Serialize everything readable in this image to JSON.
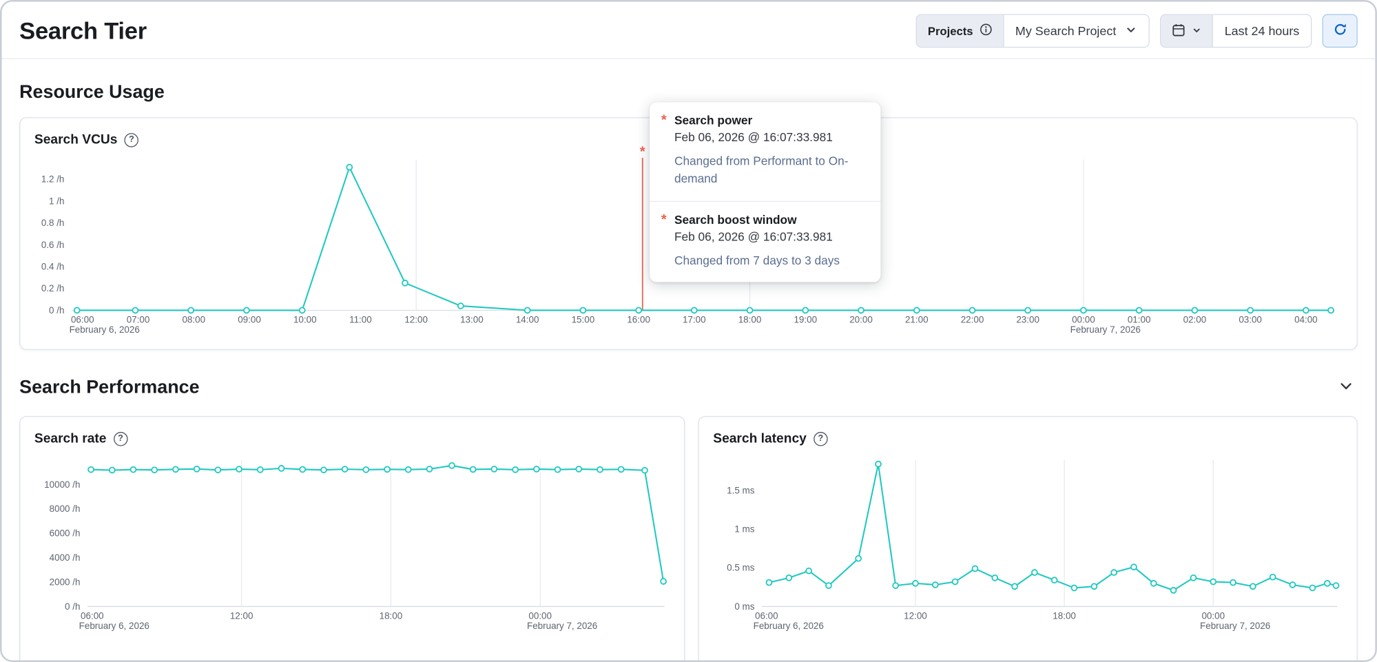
{
  "header": {
    "title": "Search Tier",
    "project_selector": {
      "label": "Projects",
      "value": "My Search Project"
    },
    "time_picker": {
      "value": "Last 24 hours"
    }
  },
  "icons": {
    "help": "?"
  },
  "sections": {
    "resource_usage": "Resource Usage",
    "search_performance": "Search Performance"
  },
  "tooltip": {
    "items": [
      {
        "marker": "*",
        "title": "Search power",
        "timestamp": "Feb 06, 2026 @ 16:07:33.981",
        "description": "Changed from Performant to On-demand"
      },
      {
        "marker": "*",
        "title": "Search boost window",
        "timestamp": "Feb 06, 2026 @ 16:07:33.981",
        "description": "Changed from 7 days to 3 days"
      }
    ]
  },
  "chart_data": [
    {
      "id": "search-vcus",
      "type": "line",
      "title": "Search VCUs",
      "unit": "/h",
      "color": "#1ec8c0",
      "legend": "none",
      "grid": "vertical",
      "x_domain": [
        5.8,
        28.5
      ],
      "y_max": 1.38,
      "grid_hours": [
        12,
        18,
        24
      ],
      "y_ticks": [
        {
          "v": 0,
          "label": "0 /h"
        },
        {
          "v": 0.2,
          "label": "0.2 /h"
        },
        {
          "v": 0.4,
          "label": "0.4 /h"
        },
        {
          "v": 0.6,
          "label": "0.6 /h"
        },
        {
          "v": 0.8,
          "label": "0.8 /h"
        },
        {
          "v": 1,
          "label": "1 /h"
        },
        {
          "v": 1.2,
          "label": "1.2 /h"
        }
      ],
      "x_ticks": [
        {
          "hour": 6,
          "label": "06:00",
          "sub": "February 6, 2026"
        },
        {
          "hour": 7,
          "label": "07:00"
        },
        {
          "hour": 8,
          "label": "08:00"
        },
        {
          "hour": 9,
          "label": "09:00"
        },
        {
          "hour": 10,
          "label": "10:00"
        },
        {
          "hour": 11,
          "label": "11:00"
        },
        {
          "hour": 12,
          "label": "12:00"
        },
        {
          "hour": 13,
          "label": "13:00"
        },
        {
          "hour": 14,
          "label": "14:00"
        },
        {
          "hour": 15,
          "label": "15:00"
        },
        {
          "hour": 16,
          "label": "16:00"
        },
        {
          "hour": 17,
          "label": "17:00"
        },
        {
          "hour": 18,
          "label": "18:00"
        },
        {
          "hour": 19,
          "label": "19:00"
        },
        {
          "hour": 20,
          "label": "20:00"
        },
        {
          "hour": 21,
          "label": "21:00"
        },
        {
          "hour": 22,
          "label": "22:00"
        },
        {
          "hour": 23,
          "label": "23:00"
        },
        {
          "hour": 24,
          "label": "00:00",
          "sub": "February 7, 2026"
        },
        {
          "hour": 25,
          "label": "01:00"
        },
        {
          "hour": 26,
          "label": "02:00"
        },
        {
          "hour": 27,
          "label": "03:00"
        },
        {
          "hour": 28,
          "label": "04:00"
        }
      ],
      "points": [
        [
          5.9,
          0
        ],
        [
          6.95,
          0
        ],
        [
          7.95,
          0
        ],
        [
          8.95,
          0
        ],
        [
          9.95,
          0
        ],
        [
          10.8,
          1.31
        ],
        [
          11.8,
          0.25
        ],
        [
          12.8,
          0.04
        ],
        [
          14,
          0
        ],
        [
          15,
          0
        ],
        [
          16,
          0
        ],
        [
          17,
          0
        ],
        [
          18,
          0
        ],
        [
          19,
          0
        ],
        [
          20,
          0
        ],
        [
          21,
          0
        ],
        [
          22,
          0
        ],
        [
          23,
          0
        ],
        [
          24,
          0
        ],
        [
          25,
          0
        ],
        [
          26,
          0
        ],
        [
          27,
          0
        ],
        [
          28,
          0
        ],
        [
          28.45,
          0
        ]
      ],
      "annotation": {
        "hour": 16.07,
        "symbol": "*",
        "color": "#e7664c"
      }
    },
    {
      "id": "search-rate",
      "type": "line",
      "title": "Search rate",
      "unit": "/h",
      "color": "#1ec8c0",
      "legend": "none",
      "grid": "vertical",
      "x_domain": [
        5.8,
        29
      ],
      "y_max": 12000,
      "grid_hours": [
        12,
        18,
        24
      ],
      "y_ticks": [
        {
          "v": 0,
          "label": "0 /h"
        },
        {
          "v": 2000,
          "label": "2000 /h"
        },
        {
          "v": 4000,
          "label": "4000 /h"
        },
        {
          "v": 6000,
          "label": "6000 /h"
        },
        {
          "v": 8000,
          "label": "8000 /h"
        },
        {
          "v": 10000,
          "label": "10000 /h"
        }
      ],
      "x_ticks": [
        {
          "hour": 6,
          "label": "06:00",
          "sub": "February 6, 2026"
        },
        {
          "hour": 12,
          "label": "12:00"
        },
        {
          "hour": 18,
          "label": "18:00"
        },
        {
          "hour": 24,
          "label": "00:00",
          "sub": "February 7, 2026"
        }
      ],
      "points": [
        [
          5.95,
          11230
        ],
        [
          6.8,
          11180
        ],
        [
          7.65,
          11230
        ],
        [
          8.5,
          11200
        ],
        [
          9.35,
          11250
        ],
        [
          10.2,
          11280
        ],
        [
          11.05,
          11200
        ],
        [
          11.9,
          11260
        ],
        [
          12.75,
          11220
        ],
        [
          13.6,
          11330
        ],
        [
          14.45,
          11240
        ],
        [
          15.3,
          11200
        ],
        [
          16.15,
          11260
        ],
        [
          17.0,
          11220
        ],
        [
          17.85,
          11250
        ],
        [
          18.7,
          11230
        ],
        [
          19.55,
          11270
        ],
        [
          20.45,
          11560
        ],
        [
          21.3,
          11240
        ],
        [
          22.15,
          11270
        ],
        [
          23.0,
          11220
        ],
        [
          23.85,
          11270
        ],
        [
          24.7,
          11230
        ],
        [
          25.55,
          11270
        ],
        [
          26.4,
          11230
        ],
        [
          27.25,
          11250
        ],
        [
          28.2,
          11170
        ],
        [
          28.95,
          2060
        ]
      ]
    },
    {
      "id": "search-latency",
      "type": "line",
      "title": "Search latency",
      "unit": "ms",
      "color": "#1ec8c0",
      "legend": "none",
      "grid": "vertical",
      "x_domain": [
        5.8,
        29
      ],
      "y_max": 1.89,
      "grid_hours": [
        12,
        18,
        24
      ],
      "y_ticks": [
        {
          "v": 0,
          "label": "0 ms"
        },
        {
          "v": 0.5,
          "label": "0.5 ms"
        },
        {
          "v": 1,
          "label": "1 ms"
        },
        {
          "v": 1.5,
          "label": "1.5 ms"
        }
      ],
      "x_ticks": [
        {
          "hour": 6,
          "label": "06:00",
          "sub": "February 6, 2026"
        },
        {
          "hour": 12,
          "label": "12:00"
        },
        {
          "hour": 18,
          "label": "18:00"
        },
        {
          "hour": 24,
          "label": "00:00",
          "sub": "February 7, 2026"
        }
      ],
      "points": [
        [
          6.1,
          0.31
        ],
        [
          6.9,
          0.37
        ],
        [
          7.7,
          0.46
        ],
        [
          8.5,
          0.27
        ],
        [
          9.7,
          0.62
        ],
        [
          10.5,
          1.84
        ],
        [
          11.2,
          0.27
        ],
        [
          12.0,
          0.3
        ],
        [
          12.8,
          0.28
        ],
        [
          13.6,
          0.32
        ],
        [
          14.4,
          0.49
        ],
        [
          15.2,
          0.37
        ],
        [
          16.0,
          0.26
        ],
        [
          16.8,
          0.44
        ],
        [
          17.6,
          0.34
        ],
        [
          18.4,
          0.24
        ],
        [
          19.2,
          0.26
        ],
        [
          20.0,
          0.44
        ],
        [
          20.8,
          0.51
        ],
        [
          21.6,
          0.3
        ],
        [
          22.4,
          0.21
        ],
        [
          23.2,
          0.37
        ],
        [
          24.0,
          0.32
        ],
        [
          24.8,
          0.31
        ],
        [
          25.6,
          0.26
        ],
        [
          26.4,
          0.38
        ],
        [
          27.2,
          0.28
        ],
        [
          28.0,
          0.24
        ],
        [
          28.6,
          0.3
        ],
        [
          28.95,
          0.27
        ]
      ]
    }
  ]
}
